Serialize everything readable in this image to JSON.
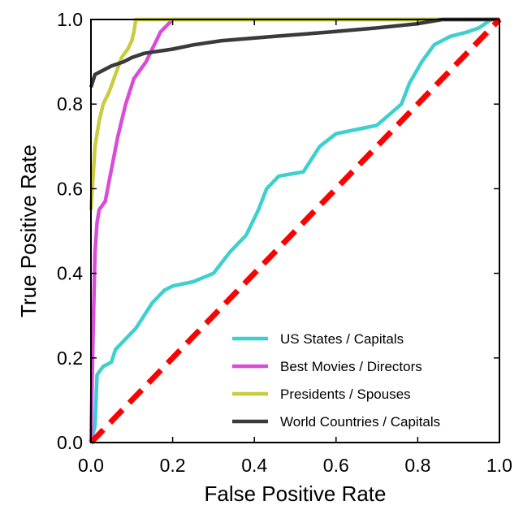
{
  "chart_data": {
    "type": "line",
    "title": "",
    "xlabel": "False Positive Rate",
    "ylabel": "True Positive Rate",
    "xlim": [
      0,
      1
    ],
    "ylim": [
      0,
      1
    ],
    "x_ticks": [
      "0.0",
      "0.2",
      "0.4",
      "0.6",
      "0.8",
      "1.0"
    ],
    "y_ticks": [
      "0.0",
      "0.2",
      "0.4",
      "0.6",
      "0.8",
      "1.0"
    ],
    "grid": false,
    "legend_position": "lower-right",
    "series": [
      {
        "name": "US States / Capitals",
        "color": "#3ecfcf",
        "points": [
          [
            0,
            0
          ],
          [
            0.01,
            0.04
          ],
          [
            0.015,
            0.16
          ],
          [
            0.03,
            0.18
          ],
          [
            0.05,
            0.19
          ],
          [
            0.06,
            0.22
          ],
          [
            0.08,
            0.24
          ],
          [
            0.11,
            0.27
          ],
          [
            0.13,
            0.3
          ],
          [
            0.15,
            0.33
          ],
          [
            0.18,
            0.36
          ],
          [
            0.2,
            0.37
          ],
          [
            0.25,
            0.38
          ],
          [
            0.3,
            0.4
          ],
          [
            0.34,
            0.45
          ],
          [
            0.38,
            0.49
          ],
          [
            0.41,
            0.55
          ],
          [
            0.43,
            0.6
          ],
          [
            0.46,
            0.63
          ],
          [
            0.52,
            0.64
          ],
          [
            0.56,
            0.7
          ],
          [
            0.6,
            0.73
          ],
          [
            0.65,
            0.74
          ],
          [
            0.7,
            0.75
          ],
          [
            0.76,
            0.8
          ],
          [
            0.78,
            0.85
          ],
          [
            0.81,
            0.9
          ],
          [
            0.84,
            0.94
          ],
          [
            0.88,
            0.96
          ],
          [
            0.92,
            0.97
          ],
          [
            0.95,
            0.98
          ],
          [
            0.98,
            1.0
          ],
          [
            1,
            1
          ]
        ]
      },
      {
        "name": "Best Movies / Directors",
        "color": "#d94cd9",
        "points": [
          [
            0,
            0
          ],
          [
            0.005,
            0.25
          ],
          [
            0.01,
            0.45
          ],
          [
            0.015,
            0.52
          ],
          [
            0.02,
            0.55
          ],
          [
            0.035,
            0.57
          ],
          [
            0.045,
            0.62
          ],
          [
            0.055,
            0.67
          ],
          [
            0.065,
            0.72
          ],
          [
            0.075,
            0.76
          ],
          [
            0.085,
            0.8
          ],
          [
            0.095,
            0.83
          ],
          [
            0.105,
            0.86
          ],
          [
            0.12,
            0.88
          ],
          [
            0.135,
            0.9
          ],
          [
            0.15,
            0.93
          ],
          [
            0.16,
            0.95
          ],
          [
            0.17,
            0.97
          ],
          [
            0.18,
            0.98
          ],
          [
            0.19,
            0.99
          ],
          [
            0.2,
            1.0
          ],
          [
            1,
            1
          ]
        ]
      },
      {
        "name": "Presidents / Spouses",
        "color": "#c9cc3f",
        "points": [
          [
            0,
            0.55
          ],
          [
            0.01,
            0.7
          ],
          [
            0.02,
            0.76
          ],
          [
            0.03,
            0.8
          ],
          [
            0.045,
            0.83
          ],
          [
            0.06,
            0.87
          ],
          [
            0.075,
            0.91
          ],
          [
            0.09,
            0.93
          ],
          [
            0.1,
            0.95
          ],
          [
            0.105,
            0.97
          ],
          [
            0.11,
            1.0
          ],
          [
            1,
            1
          ]
        ]
      },
      {
        "name": "World Countries / Capitals",
        "color": "#3a3a3a",
        "points": [
          [
            0,
            0.84
          ],
          [
            0.01,
            0.87
          ],
          [
            0.03,
            0.88
          ],
          [
            0.05,
            0.89
          ],
          [
            0.08,
            0.9
          ],
          [
            0.1,
            0.91
          ],
          [
            0.13,
            0.92
          ],
          [
            0.2,
            0.93
          ],
          [
            0.25,
            0.94
          ],
          [
            0.32,
            0.95
          ],
          [
            0.45,
            0.96
          ],
          [
            0.58,
            0.97
          ],
          [
            0.7,
            0.98
          ],
          [
            0.8,
            0.99
          ],
          [
            0.86,
            1.0
          ],
          [
            1,
            1
          ]
        ]
      },
      {
        "name": "",
        "color": "#ff0000",
        "dashed": true,
        "points": [
          [
            0,
            0
          ],
          [
            1,
            1
          ]
        ]
      }
    ]
  }
}
